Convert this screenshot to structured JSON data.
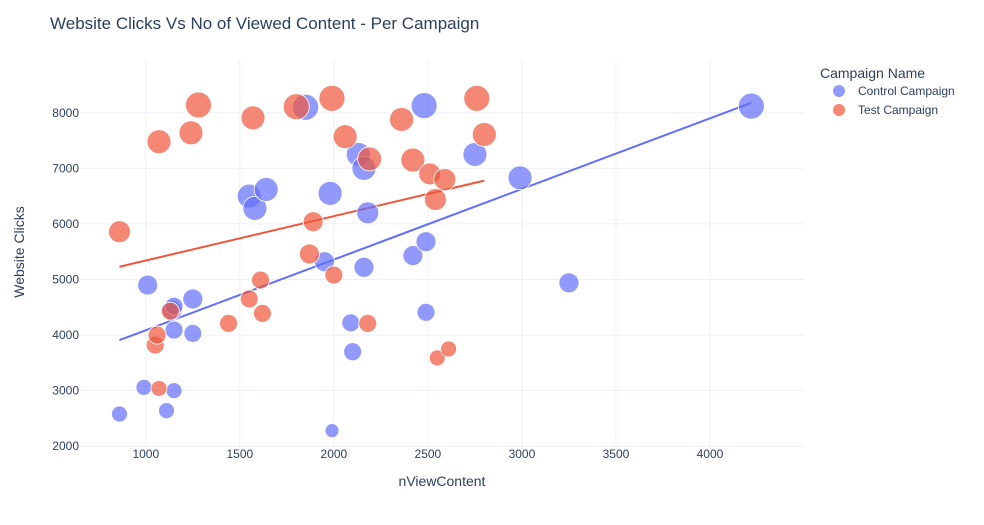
{
  "colors": {
    "control": "#636efa",
    "test": "#ef553b",
    "grid": "#ebf0f8",
    "text": "#2a3f5f"
  },
  "chart_data": {
    "type": "scatter",
    "title": "Website Clicks Vs No of Viewed Content  - Per Campaign",
    "xlabel": "nViewContent",
    "ylabel": "Website Clicks",
    "xlim": [
      650,
      4500
    ],
    "ylim": [
      1950,
      8950
    ],
    "x_ticks": [
      1000,
      1500,
      2000,
      2500,
      3000,
      3500,
      4000
    ],
    "y_ticks": [
      2000,
      3000,
      4000,
      5000,
      6000,
      7000,
      8000
    ],
    "grid": true,
    "legend": {
      "title": "Campaign Name",
      "position": "top-right"
    },
    "series": [
      {
        "name": "Control Campaign",
        "color": "#636efa",
        "points": [
          {
            "x": 860,
            "y": 2580,
            "s": 8
          },
          {
            "x": 990,
            "y": 3060,
            "s": 8
          },
          {
            "x": 1010,
            "y": 4900,
            "s": 10
          },
          {
            "x": 1110,
            "y": 2640,
            "s": 8
          },
          {
            "x": 1140,
            "y": 4450,
            "s": 10
          },
          {
            "x": 1150,
            "y": 3000,
            "s": 8
          },
          {
            "x": 1150,
            "y": 4090,
            "s": 9
          },
          {
            "x": 1150,
            "y": 4520,
            "s": 9
          },
          {
            "x": 1250,
            "y": 4650,
            "s": 10
          },
          {
            "x": 1250,
            "y": 4030,
            "s": 9
          },
          {
            "x": 1550,
            "y": 6500,
            "s": 12
          },
          {
            "x": 1580,
            "y": 6280,
            "s": 12
          },
          {
            "x": 1640,
            "y": 6620,
            "s": 12
          },
          {
            "x": 1850,
            "y": 8100,
            "s": 13
          },
          {
            "x": 1950,
            "y": 5320,
            "s": 10
          },
          {
            "x": 1980,
            "y": 6550,
            "s": 12
          },
          {
            "x": 1990,
            "y": 2280,
            "s": 7
          },
          {
            "x": 2090,
            "y": 4220,
            "s": 9
          },
          {
            "x": 2100,
            "y": 3700,
            "s": 9
          },
          {
            "x": 2130,
            "y": 7250,
            "s": 12
          },
          {
            "x": 2160,
            "y": 7000,
            "s": 12
          },
          {
            "x": 2160,
            "y": 5220,
            "s": 10
          },
          {
            "x": 2180,
            "y": 6200,
            "s": 11
          },
          {
            "x": 2420,
            "y": 5430,
            "s": 10
          },
          {
            "x": 2480,
            "y": 8130,
            "s": 13
          },
          {
            "x": 2490,
            "y": 5680,
            "s": 10
          },
          {
            "x": 2490,
            "y": 4410,
            "s": 9
          },
          {
            "x": 2750,
            "y": 7250,
            "s": 12
          },
          {
            "x": 2990,
            "y": 6830,
            "s": 12
          },
          {
            "x": 3250,
            "y": 4940,
            "s": 10
          },
          {
            "x": 4220,
            "y": 8120,
            "s": 13
          }
        ],
        "trendline": {
          "x": [
            860,
            4220
          ],
          "y": [
            3910,
            8180
          ]
        }
      },
      {
        "name": "Test Campaign",
        "color": "#ef553b",
        "points": [
          {
            "x": 860,
            "y": 5860,
            "s": 11
          },
          {
            "x": 1050,
            "y": 3820,
            "s": 9
          },
          {
            "x": 1060,
            "y": 4000,
            "s": 9
          },
          {
            "x": 1070,
            "y": 7480,
            "s": 12
          },
          {
            "x": 1070,
            "y": 3040,
            "s": 8
          },
          {
            "x": 1130,
            "y": 4430,
            "s": 9
          },
          {
            "x": 1240,
            "y": 7640,
            "s": 12
          },
          {
            "x": 1280,
            "y": 8140,
            "s": 13
          },
          {
            "x": 1440,
            "y": 4210,
            "s": 9
          },
          {
            "x": 1550,
            "y": 4650,
            "s": 9
          },
          {
            "x": 1570,
            "y": 7910,
            "s": 12
          },
          {
            "x": 1610,
            "y": 4990,
            "s": 9
          },
          {
            "x": 1620,
            "y": 4390,
            "s": 9
          },
          {
            "x": 1800,
            "y": 8110,
            "s": 13
          },
          {
            "x": 1870,
            "y": 5460,
            "s": 10
          },
          {
            "x": 1890,
            "y": 6040,
            "s": 10
          },
          {
            "x": 1990,
            "y": 8260,
            "s": 13
          },
          {
            "x": 2000,
            "y": 5080,
            "s": 9
          },
          {
            "x": 2060,
            "y": 7570,
            "s": 12
          },
          {
            "x": 2180,
            "y": 4210,
            "s": 9
          },
          {
            "x": 2190,
            "y": 7170,
            "s": 12
          },
          {
            "x": 2360,
            "y": 7880,
            "s": 12
          },
          {
            "x": 2420,
            "y": 7150,
            "s": 12
          },
          {
            "x": 2510,
            "y": 6900,
            "s": 11
          },
          {
            "x": 2540,
            "y": 6440,
            "s": 11
          },
          {
            "x": 2550,
            "y": 3590,
            "s": 8
          },
          {
            "x": 2590,
            "y": 6800,
            "s": 11
          },
          {
            "x": 2610,
            "y": 3750,
            "s": 8
          },
          {
            "x": 2760,
            "y": 8260,
            "s": 13
          },
          {
            "x": 2800,
            "y": 7610,
            "s": 12
          }
        ],
        "trendline": {
          "x": [
            860,
            2800
          ],
          "y": [
            5230,
            6780
          ]
        }
      }
    ]
  }
}
